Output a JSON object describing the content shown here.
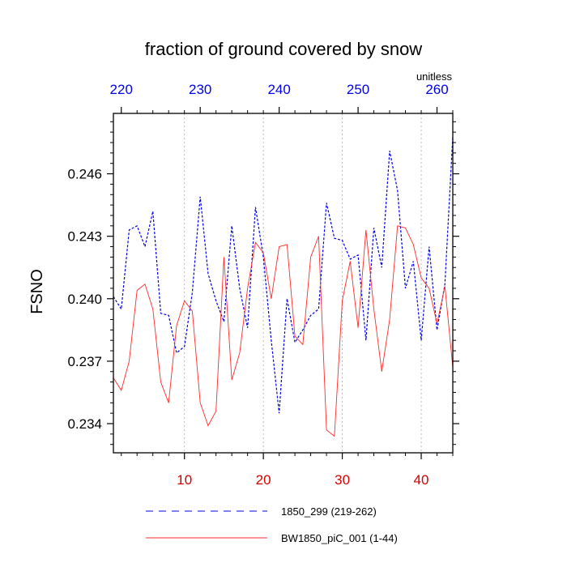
{
  "chart_data": {
    "type": "line",
    "title": "fraction of ground covered by snow",
    "ylabel": "FSNO",
    "units_label": "unitless",
    "ylim": [
      0.2326,
      0.2489
    ],
    "yticks": [
      0.234,
      0.237,
      0.24,
      0.243,
      0.246
    ],
    "ytick_labels": [
      "0.234",
      "0.237",
      "0.240",
      "0.243",
      "0.246"
    ],
    "bottom_axis": {
      "range": [
        1,
        44
      ],
      "ticks": [
        10,
        20,
        30,
        40
      ],
      "tick_labels": [
        "10",
        "20",
        "30",
        "40"
      ],
      "color": "#d40000"
    },
    "top_axis": {
      "range": [
        219,
        262
      ],
      "ticks": [
        220,
        230,
        240,
        250,
        260
      ],
      "tick_labels": [
        "220",
        "230",
        "240",
        "250",
        "260"
      ],
      "color": "#0000e6"
    },
    "grid": "vertical dotted lines at bottom-axis major ticks",
    "series": [
      {
        "name": "1850_299 (219-262)",
        "axis": "top",
        "color": "#0000e6",
        "style": "dashed",
        "x": [
          219,
          220,
          221,
          222,
          223,
          224,
          225,
          226,
          227,
          228,
          229,
          230,
          231,
          232,
          233,
          234,
          235,
          236,
          237,
          238,
          239,
          240,
          241,
          242,
          243,
          244,
          245,
          246,
          247,
          248,
          249,
          250,
          251,
          252,
          253,
          254,
          255,
          256,
          257,
          258,
          259,
          260,
          261,
          262
        ],
        "values": [
          0.2401,
          0.2395,
          0.2433,
          0.2435,
          0.2425,
          0.2442,
          0.2393,
          0.2392,
          0.2374,
          0.2377,
          0.2403,
          0.2449,
          0.2412,
          0.2399,
          0.2389,
          0.2435,
          0.2405,
          0.2386,
          0.2444,
          0.242,
          0.238,
          0.2345,
          0.24,
          0.2379,
          0.2385,
          0.2392,
          0.2395,
          0.2446,
          0.2429,
          0.2428,
          0.2419,
          0.2421,
          0.238,
          0.2434,
          0.2415,
          0.2471,
          0.2452,
          0.2405,
          0.2418,
          0.238,
          0.2425,
          0.2385,
          0.2407,
          0.2478
        ]
      },
      {
        "name": "BW1850_piC_001 (1-44)",
        "axis": "bottom",
        "color": "#ff2a2a",
        "style": "solid",
        "x": [
          1,
          2,
          3,
          4,
          5,
          6,
          7,
          8,
          9,
          10,
          11,
          12,
          13,
          14,
          15,
          16,
          17,
          18,
          19,
          20,
          21,
          22,
          23,
          24,
          25,
          26,
          27,
          28,
          29,
          30,
          31,
          32,
          33,
          34,
          35,
          36,
          37,
          38,
          39,
          40,
          41,
          42,
          43,
          44
        ],
        "values": [
          0.2362,
          0.2356,
          0.237,
          0.2404,
          0.2407,
          0.2395,
          0.236,
          0.235,
          0.2387,
          0.2399,
          0.2394,
          0.235,
          0.2339,
          0.2346,
          0.242,
          0.2361,
          0.2374,
          0.2405,
          0.2427,
          0.2422,
          0.24,
          0.2425,
          0.2426,
          0.2382,
          0.2378,
          0.242,
          0.243,
          0.2337,
          0.2334,
          0.2399,
          0.2418,
          0.2386,
          0.2433,
          0.2395,
          0.2365,
          0.239,
          0.2435,
          0.2434,
          0.2426,
          0.241,
          0.2405,
          0.2388,
          0.2406,
          0.2367
        ]
      }
    ],
    "legend": "bottom"
  }
}
